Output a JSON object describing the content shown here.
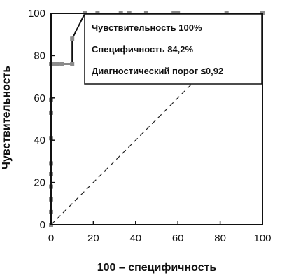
{
  "chart_data": {
    "type": "line",
    "title": "",
    "xlabel": "100 – специфичность",
    "ylabel": "Чувствительность",
    "xlim": [
      0,
      100
    ],
    "ylim": [
      0,
      100
    ],
    "xticks": [
      0,
      20,
      40,
      60,
      80,
      100
    ],
    "yticks": [
      0,
      20,
      40,
      60,
      80,
      100
    ],
    "grid": false,
    "series": [
      {
        "x": [
          0,
          0,
          0,
          0,
          0,
          0,
          0,
          0,
          0,
          0,
          1.5,
          3,
          5,
          10,
          10,
          16,
          22,
          33,
          37,
          45,
          58,
          60,
          83,
          100
        ],
        "y": [
          0,
          6,
          12,
          18,
          24,
          29,
          41,
          53,
          59,
          76,
          76,
          76,
          76,
          76,
          88,
          100,
          100,
          100,
          100,
          100,
          100,
          100,
          100,
          100
        ]
      }
    ],
    "reference_line": {
      "x": [
        0,
        100
      ],
      "y": [
        0,
        100
      ],
      "style": "dashed"
    },
    "annotations": [
      "Чувствительность  100%",
      "Специфичность  84,2%",
      "Диагностический порог  ≤0,92"
    ]
  }
}
